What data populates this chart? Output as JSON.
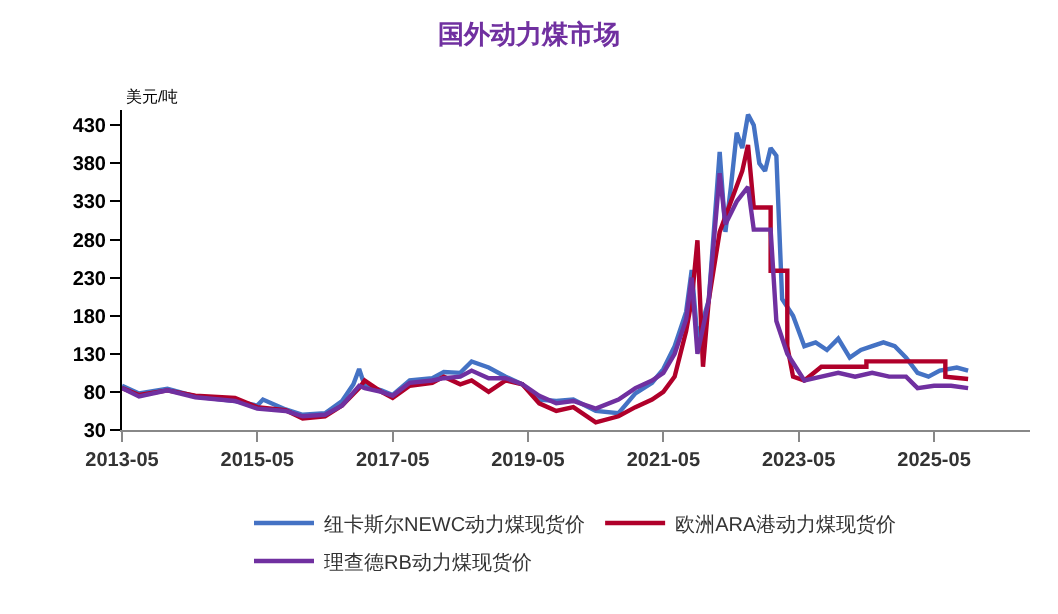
{
  "chart_data": {
    "type": "line",
    "title": "国外动力煤市场",
    "ylabel": "美元/吨",
    "xlim": [
      "2013-05",
      "2026-10"
    ],
    "xticks": [
      "2013-05",
      "2015-05",
      "2017-05",
      "2019-05",
      "2021-05",
      "2023-05",
      "2025-05"
    ],
    "ylim": [
      30,
      450
    ],
    "yticks": [
      30,
      80,
      130,
      180,
      230,
      280,
      330,
      380,
      430
    ],
    "grid": false,
    "legend": "bottom",
    "marker": "none",
    "line_style": "solid",
    "series": [
      {
        "name": "纽卡斯尔NEWC动力煤现货价",
        "color": "#4472c4",
        "x": [
          "2013-05",
          "2013-08",
          "2014-01",
          "2014-06",
          "2015-01",
          "2015-05",
          "2015-06",
          "2015-10",
          "2016-01",
          "2016-05",
          "2016-08",
          "2016-10",
          "2016-11",
          "2016-12",
          "2017-03",
          "2017-05",
          "2017-08",
          "2017-12",
          "2018-02",
          "2018-05",
          "2018-07",
          "2018-10",
          "2019-01",
          "2019-04",
          "2019-07",
          "2019-10",
          "2020-01",
          "2020-05",
          "2020-09",
          "2020-12",
          "2021-03",
          "2021-05",
          "2021-07",
          "2021-09",
          "2021-10",
          "2021-11",
          "2022-01",
          "2022-03",
          "2022-04",
          "2022-05",
          "2022-06",
          "2022-07",
          "2022-08",
          "2022-09",
          "2022-10",
          "2022-11",
          "2022-12",
          "2023-01",
          "2023-02",
          "2023-04",
          "2023-06",
          "2023-08",
          "2023-10",
          "2023-12",
          "2024-02",
          "2024-04",
          "2024-06",
          "2024-08",
          "2024-10",
          "2024-12",
          "2025-02",
          "2025-04",
          "2025-06",
          "2025-09",
          "2025-11"
        ],
        "values": [
          88,
          78,
          84,
          74,
          68,
          62,
          70,
          57,
          50,
          52,
          68,
          90,
          110,
          88,
          82,
          76,
          95,
          98,
          106,
          105,
          120,
          112,
          100,
          90,
          70,
          68,
          70,
          55,
          52,
          78,
          92,
          110,
          140,
          185,
          240,
          150,
          200,
          395,
          290,
          350,
          420,
          400,
          444,
          430,
          380,
          370,
          400,
          390,
          202,
          180,
          140,
          145,
          135,
          150,
          125,
          135,
          140,
          145,
          140,
          125,
          105,
          100,
          108,
          112,
          108
        ]
      },
      {
        "name": "欧洲ARA港动力煤现货价",
        "color": "#b0002a",
        "x": [
          "2013-05",
          "2013-08",
          "2014-01",
          "2014-06",
          "2015-01",
          "2015-05",
          "2015-10",
          "2016-01",
          "2016-05",
          "2016-08",
          "2016-11",
          "2016-12",
          "2017-03",
          "2017-05",
          "2017-08",
          "2017-12",
          "2018-02",
          "2018-05",
          "2018-07",
          "2018-10",
          "2019-01",
          "2019-04",
          "2019-07",
          "2019-10",
          "2020-01",
          "2020-05",
          "2020-09",
          "2020-12",
          "2021-03",
          "2021-05",
          "2021-07",
          "2021-09",
          "2021-10",
          "2021-11",
          "2021-12",
          "2022-01",
          "2022-03",
          "2022-05",
          "2022-07",
          "2022-08",
          "2022-09",
          "2022-12",
          "2022-12",
          "2023-03",
          "2023-03",
          "2023-04",
          "2023-06",
          "2023-09",
          "2023-11",
          "2024-05",
          "2024-05",
          "2025-07",
          "2025-07",
          "2025-11"
        ],
        "values": [
          85,
          76,
          82,
          75,
          72,
          60,
          56,
          45,
          48,
          62,
          85,
          95,
          80,
          72,
          88,
          92,
          100,
          90,
          95,
          80,
          95,
          90,
          65,
          55,
          60,
          40,
          48,
          60,
          70,
          80,
          100,
          160,
          200,
          279,
          113,
          200,
          290,
          330,
          370,
          404,
          322,
          322,
          239,
          239,
          140,
          100,
          95,
          113,
          113,
          113,
          120,
          120,
          100,
          97
        ]
      },
      {
        "name": "理查德RB动力煤现货价",
        "color": "#7030a0",
        "x": [
          "2013-05",
          "2013-08",
          "2014-01",
          "2014-06",
          "2015-01",
          "2015-05",
          "2015-10",
          "2016-01",
          "2016-05",
          "2016-08",
          "2016-11",
          "2016-12",
          "2017-03",
          "2017-05",
          "2017-08",
          "2017-12",
          "2018-02",
          "2018-05",
          "2018-07",
          "2018-10",
          "2019-01",
          "2019-04",
          "2019-07",
          "2019-10",
          "2020-01",
          "2020-05",
          "2020-09",
          "2020-12",
          "2021-03",
          "2021-05",
          "2021-07",
          "2021-09",
          "2021-10",
          "2021-11",
          "2022-01",
          "2022-03",
          "2022-04",
          "2022-06",
          "2022-08",
          "2022-09",
          "2022-12",
          "2023-01",
          "2023-03",
          "2023-06",
          "2023-09",
          "2023-12",
          "2024-03",
          "2024-06",
          "2024-09",
          "2024-12",
          "2025-02",
          "2025-05",
          "2025-08",
          "2025-11"
        ],
        "values": [
          85,
          74,
          82,
          73,
          68,
          58,
          55,
          48,
          50,
          62,
          88,
          85,
          80,
          75,
          92,
          95,
          98,
          100,
          108,
          98,
          98,
          90,
          75,
          65,
          68,
          58,
          70,
          85,
          95,
          105,
          130,
          175,
          230,
          130,
          200,
          367,
          300,
          330,
          349,
          293,
          293,
          173,
          130,
          95,
          100,
          105,
          100,
          105,
          100,
          100,
          85,
          88,
          88,
          85
        ]
      }
    ]
  }
}
